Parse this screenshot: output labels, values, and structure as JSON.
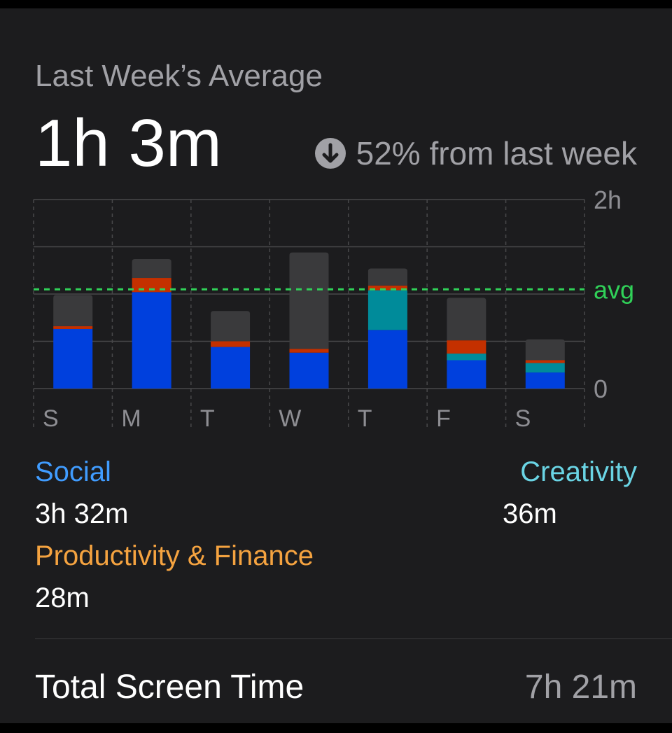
{
  "title": "Last Week’s Average",
  "average_value": "1h 3m",
  "change": {
    "icon": "arrow-down-circle-icon",
    "text": "52% from last week"
  },
  "chart_data": {
    "type": "bar",
    "stacked": true,
    "unit": "hours",
    "categories": [
      "S",
      "M",
      "T",
      "W",
      "T",
      "F",
      "S"
    ],
    "y_tick_labels": [
      "2h",
      "avg",
      "0"
    ],
    "ylim": [
      0,
      2
    ],
    "average_hours": 1.05,
    "grid": true,
    "series": [
      {
        "name": "Social",
        "color": "#0040dd",
        "values": [
          0.63,
          1.02,
          0.44,
          0.38,
          0.62,
          0.3,
          0.17
        ]
      },
      {
        "name": "Creativity",
        "color": "#008b9a",
        "values": [
          0.0,
          0.0,
          0.0,
          0.0,
          0.42,
          0.07,
          0.1
        ]
      },
      {
        "name": "Productivity & Finance",
        "color": "#c43000",
        "values": [
          0.03,
          0.15,
          0.06,
          0.04,
          0.05,
          0.14,
          0.03
        ]
      },
      {
        "color": "#3a3a3c",
        "values": [
          0.33,
          0.2,
          0.32,
          1.02,
          0.18,
          0.45,
          0.22
        ]
      }
    ]
  },
  "legend": [
    {
      "label": "Social",
      "value": "3h 32m",
      "color": "#409cff"
    },
    {
      "label": "Creativity",
      "value": "36m",
      "color": "#6ad4e4"
    },
    {
      "label": "Productivity & Finance",
      "value": "28m",
      "color": "#f5a340"
    }
  ],
  "total": {
    "label": "Total Screen Time",
    "value": "7h 21m"
  },
  "colors": {
    "background": "#000000",
    "card": "#1c1c1e",
    "average_line": "#30d158",
    "secondary_text": "#a1a1a6"
  }
}
